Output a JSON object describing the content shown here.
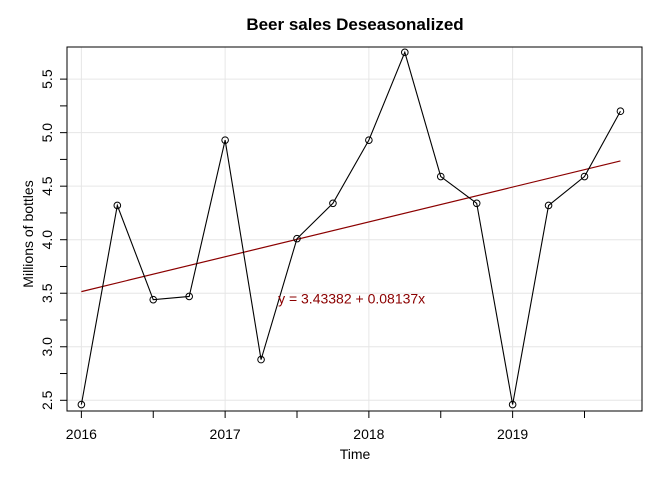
{
  "chart_data": {
    "type": "line",
    "title": "Beer sales Deseasonalized",
    "xlabel": "Time",
    "ylabel": "Millions of bottles",
    "xlim": [
      2015.9,
      2019.9
    ],
    "ylim": [
      2.4,
      5.8
    ],
    "xticks": [
      2016,
      2017,
      2018,
      2019
    ],
    "yticks": [
      2.5,
      3.0,
      3.5,
      4.0,
      4.5,
      5.0,
      5.5
    ],
    "ytick_labels": [
      "2.5",
      "3.0",
      "3.5",
      "4.0",
      "4.5",
      "5.0",
      "5.5"
    ],
    "grid": true,
    "series": [
      {
        "x": [
          2016.0,
          2016.25,
          2016.5,
          2016.75,
          2017.0,
          2017.25,
          2017.5,
          2017.75,
          2018.0,
          2018.25,
          2018.5,
          2018.75,
          2019.0,
          2019.25,
          2019.5,
          2019.75
        ],
        "values": [
          2.46,
          4.32,
          3.44,
          3.47,
          4.93,
          2.88,
          4.01,
          4.34,
          4.93,
          5.75,
          4.59,
          4.34,
          2.46,
          4.32,
          4.59,
          5.2
        ],
        "color": "#000000",
        "marker": "open-circle"
      }
    ],
    "trend_line": {
      "intercept": 3.43382,
      "slope": 0.08137,
      "x_index": [
        1,
        16
      ],
      "color": "#8b0000"
    },
    "annotations": [
      {
        "text": "y = 3.43382 + 0.08137x",
        "x": 2017.88,
        "y": 3.45,
        "color": "#8b0000"
      }
    ]
  }
}
